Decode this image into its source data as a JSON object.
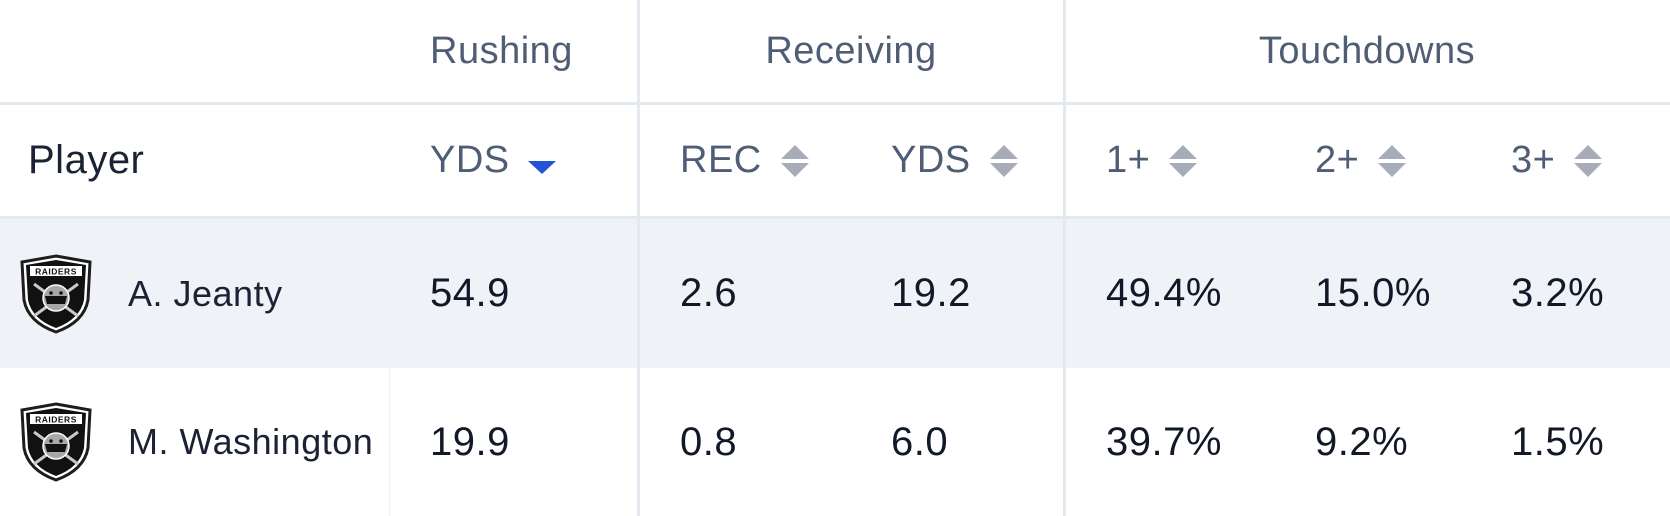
{
  "groups": {
    "rushing": "Rushing",
    "receiving": "Receiving",
    "touchdowns": "Touchdowns"
  },
  "columns": {
    "player": "Player",
    "rush_yds": "YDS",
    "rec": "REC",
    "rec_yds": "YDS",
    "td1": "1+",
    "td2": "2+",
    "td3": "3+"
  },
  "sort": {
    "active_column": "rush_yds",
    "direction": "desc",
    "active_color": "#2354d8",
    "inactive_color": "#a6adb9"
  },
  "team_logo": {
    "icon": "raiders-logo-icon",
    "text": "RAIDERS"
  },
  "rows": [
    {
      "player": "A. Jeanty",
      "rush_yds": "54.9",
      "rec": "2.6",
      "rec_yds": "19.2",
      "td1": "49.4%",
      "td2": "15.0%",
      "td3": "3.2%"
    },
    {
      "player": "M. Washington",
      "rush_yds": "19.9",
      "rec": "0.8",
      "rec_yds": "6.0",
      "td1": "39.7%",
      "td2": "9.2%",
      "td3": "1.5%"
    }
  ],
  "colors": {
    "header_text": "#4f5d75",
    "body_text": "#111827",
    "stripe": "#eff2f7",
    "divider": "#e4e8ef"
  }
}
